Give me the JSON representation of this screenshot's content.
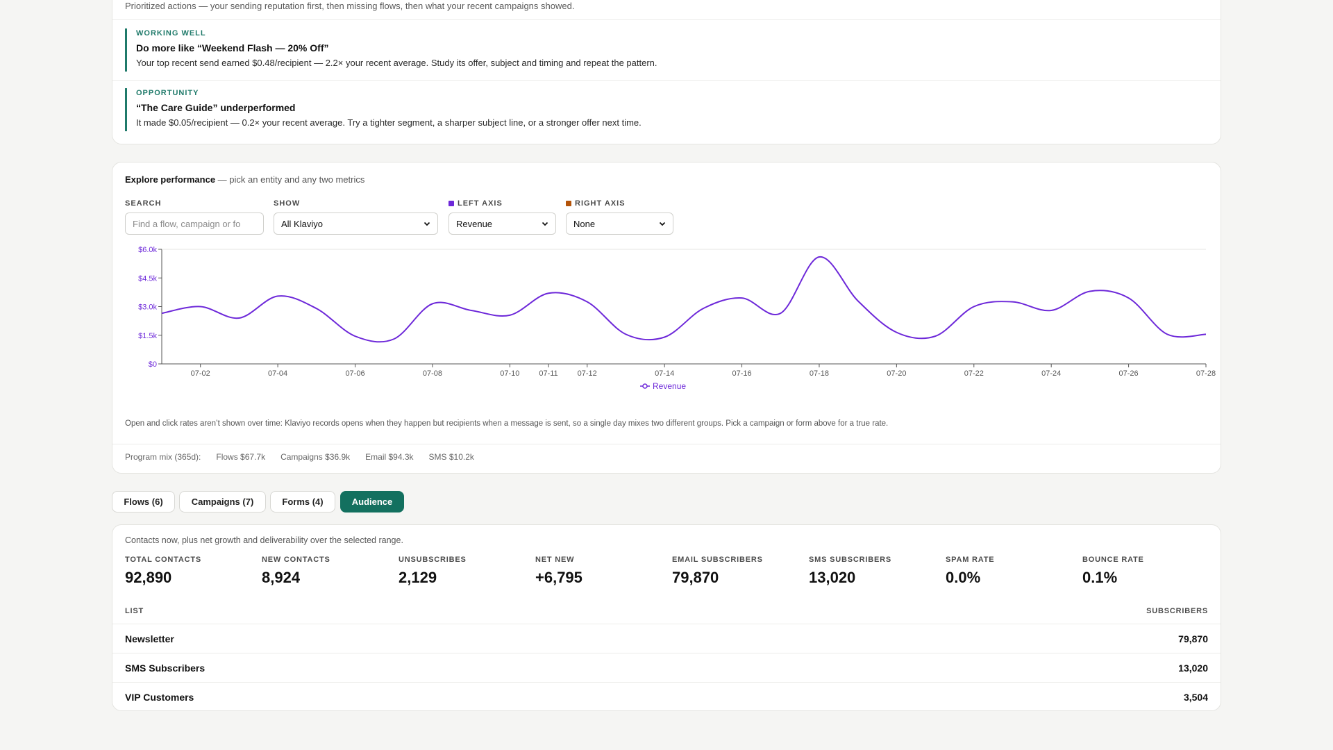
{
  "insights": {
    "intro": "Prioritized actions — your sending reputation first, then missing flows, then what your recent campaigns showed.",
    "items": [
      {
        "tag": "WORKING WELL",
        "title": "Do more like “Weekend Flash — 20% Off”",
        "body": "Your top recent send earned $0.48/recipient — 2.2× your recent average. Study its offer, subject and timing and repeat the pattern."
      },
      {
        "tag": "OPPORTUNITY",
        "title": "“The Care Guide” underperformed",
        "body": "It made $0.05/recipient — 0.2× your recent average. Try a tighter segment, a sharper subject line, or a stronger offer next time."
      }
    ]
  },
  "explore": {
    "title": "Explore performance",
    "subtitle": " — pick an entity and any two metrics",
    "search": {
      "label": "SEARCH",
      "placeholder": "Find a flow, campaign or fo"
    },
    "show": {
      "label": "SHOW",
      "value": "All Klaviyo"
    },
    "left_axis": {
      "label": "LEFT AXIS",
      "value": "Revenue",
      "color": "#6d28d9"
    },
    "right_axis": {
      "label": "RIGHT AXIS",
      "value": "None",
      "color": "#b45309"
    },
    "note": "Open and click rates aren’t shown over time: Klaviyo records opens when they happen but recipients when a message is sent, so a single day mixes two different groups. Pick a campaign or form above for a true rate.",
    "mix": {
      "label": "Program mix (365d):",
      "items": [
        "Flows $67.7k",
        "Campaigns $36.9k",
        "Email $94.3k",
        "SMS $10.2k"
      ]
    }
  },
  "chart_data": {
    "type": "line",
    "x": [
      "07-01",
      "07-02",
      "07-03",
      "07-04",
      "07-05",
      "07-06",
      "07-07",
      "07-08",
      "07-09",
      "07-10",
      "07-11",
      "07-12",
      "07-13",
      "07-14",
      "07-15",
      "07-16",
      "07-17",
      "07-18",
      "07-19",
      "07-20",
      "07-21",
      "07-22",
      "07-23",
      "07-24",
      "07-25",
      "07-26",
      "07-27",
      "07-28"
    ],
    "x_tick_labels": [
      "07-02",
      "07-04",
      "07-06",
      "07-08",
      "07-10",
      "07-11",
      "07-12",
      "07-14",
      "07-16",
      "07-18",
      "07-20",
      "07-22",
      "07-24",
      "07-26",
      "07-28"
    ],
    "series": [
      {
        "name": "Revenue",
        "color": "#6d28d9",
        "values": [
          2650,
          3000,
          2400,
          3550,
          2900,
          1450,
          1300,
          3150,
          2800,
          2550,
          3700,
          3250,
          1550,
          1400,
          2900,
          3450,
          2650,
          5600,
          3300,
          1650,
          1450,
          3000,
          3250,
          2800,
          3800,
          3450,
          1550,
          1550
        ]
      }
    ],
    "y_ticks": [
      "$0",
      "$1.5k",
      "$3.0k",
      "$4.5k",
      "$6.0k"
    ],
    "ylim": [
      0,
      6000
    ],
    "legend": "bottom-center",
    "grid": false
  },
  "tabs": [
    {
      "label": "Flows (6)",
      "active": false
    },
    {
      "label": "Campaigns (7)",
      "active": false
    },
    {
      "label": "Forms (4)",
      "active": false
    },
    {
      "label": "Audience",
      "active": true
    }
  ],
  "audience": {
    "intro": "Contacts now, plus net growth and deliverability over the selected range.",
    "stats": [
      {
        "label": "TOTAL CONTACTS",
        "value": "92,890"
      },
      {
        "label": "NEW CONTACTS",
        "value": "8,924"
      },
      {
        "label": "UNSUBSCRIBES",
        "value": "2,129"
      },
      {
        "label": "NET NEW",
        "value": "+6,795"
      },
      {
        "label": "EMAIL SUBSCRIBERS",
        "value": "79,870"
      },
      {
        "label": "SMS SUBSCRIBERS",
        "value": "13,020"
      },
      {
        "label": "SPAM RATE",
        "value": "0.0%"
      },
      {
        "label": "BOUNCE RATE",
        "value": "0.1%"
      }
    ],
    "table": {
      "col_list": "LIST",
      "col_subs": "SUBSCRIBERS",
      "rows": [
        {
          "name": "Newsletter",
          "value": "79,870"
        },
        {
          "name": "SMS Subscribers",
          "value": "13,020"
        },
        {
          "name": "VIP Customers",
          "value": "3,504"
        }
      ]
    }
  }
}
